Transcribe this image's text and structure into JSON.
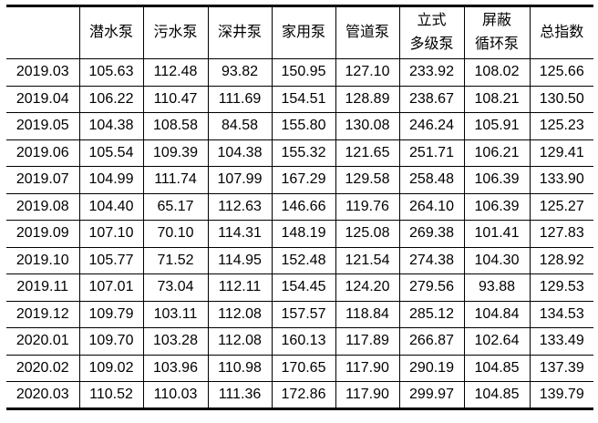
{
  "table": {
    "headers": [
      "",
      "潜水泵",
      "污水泵",
      "深井泵",
      "家用泵",
      "管道泵",
      "立式\n多级泵",
      "屏蔽\n循环泵",
      "总指数"
    ],
    "header_lines": [
      [
        ""
      ],
      [
        "潜水泵"
      ],
      [
        "污水泵"
      ],
      [
        "深井泵"
      ],
      [
        "家用泵"
      ],
      [
        "管道泵"
      ],
      [
        "立式",
        "多级泵"
      ],
      [
        "屏蔽",
        "循环泵"
      ],
      [
        "总指数"
      ]
    ],
    "rows": [
      [
        "2019.03",
        "105.63",
        "112.48",
        "93.82",
        "150.95",
        "127.10",
        "233.92",
        "108.02",
        "125.66"
      ],
      [
        "2019.04",
        "106.22",
        "110.47",
        "111.69",
        "154.51",
        "128.89",
        "238.67",
        "108.21",
        "130.50"
      ],
      [
        "2019.05",
        "104.38",
        "108.58",
        "84.58",
        "155.80",
        "130.08",
        "246.24",
        "105.91",
        "125.23"
      ],
      [
        "2019.06",
        "105.54",
        "109.39",
        "104.38",
        "155.32",
        "121.65",
        "251.71",
        "106.21",
        "129.41"
      ],
      [
        "2019.07",
        "104.99",
        "111.74",
        "107.99",
        "167.29",
        "129.58",
        "258.48",
        "106.39",
        "133.90"
      ],
      [
        "2019.08",
        "104.40",
        "65.17",
        "112.63",
        "146.66",
        "119.76",
        "264.10",
        "106.39",
        "125.27"
      ],
      [
        "2019.09",
        "107.10",
        "70.10",
        "114.31",
        "148.19",
        "125.08",
        "269.38",
        "101.41",
        "127.83"
      ],
      [
        "2019.10",
        "105.77",
        "71.52",
        "114.95",
        "152.48",
        "121.54",
        "274.38",
        "104.30",
        "128.92"
      ],
      [
        "2019.11",
        "107.01",
        "73.04",
        "112.11",
        "154.45",
        "124.20",
        "279.56",
        "93.88",
        "129.53"
      ],
      [
        "2019.12",
        "109.79",
        "103.11",
        "112.08",
        "157.57",
        "118.84",
        "285.12",
        "104.84",
        "134.53"
      ],
      [
        "2020.01",
        "109.70",
        "103.28",
        "112.08",
        "160.13",
        "117.89",
        "266.87",
        "102.64",
        "133.49"
      ],
      [
        "2020.02",
        "109.02",
        "103.96",
        "110.98",
        "170.65",
        "117.90",
        "290.19",
        "104.85",
        "137.39"
      ],
      [
        "2020.03",
        "110.52",
        "110.03",
        "111.36",
        "172.86",
        "117.90",
        "299.97",
        "104.85",
        "139.79"
      ]
    ]
  }
}
